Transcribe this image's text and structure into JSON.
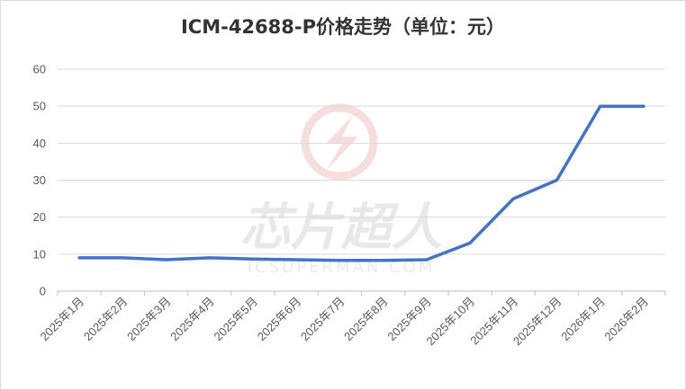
{
  "watermark": {
    "brand_cn": "芯片超人",
    "brand_en": "ICSUPERMAN.COM",
    "logo_icon": "lightning-circle-icon"
  },
  "chart_data": {
    "type": "line",
    "title": "ICM-42688-P价格走势（单位：元）",
    "xlabel": "",
    "ylabel": "",
    "ylim": [
      0,
      60
    ],
    "yticks": [
      0,
      10,
      20,
      30,
      40,
      50,
      60
    ],
    "grid": true,
    "legend": "none",
    "categories": [
      "2025年1月",
      "2025年2月",
      "2025年3月",
      "2025年4月",
      "2025年5月",
      "2025年6月",
      "2025年7月",
      "2025年8月",
      "2025年9月",
      "2025年10月",
      "2025年11月",
      "2025年12月",
      "2026年1月",
      "2026年2月"
    ],
    "series": [
      {
        "color": "#4472c4",
        "values": [
          9,
          9,
          8.5,
          9,
          8.7,
          8.5,
          8.3,
          8.3,
          8.5,
          13,
          25,
          30,
          50,
          50
        ]
      }
    ]
  }
}
